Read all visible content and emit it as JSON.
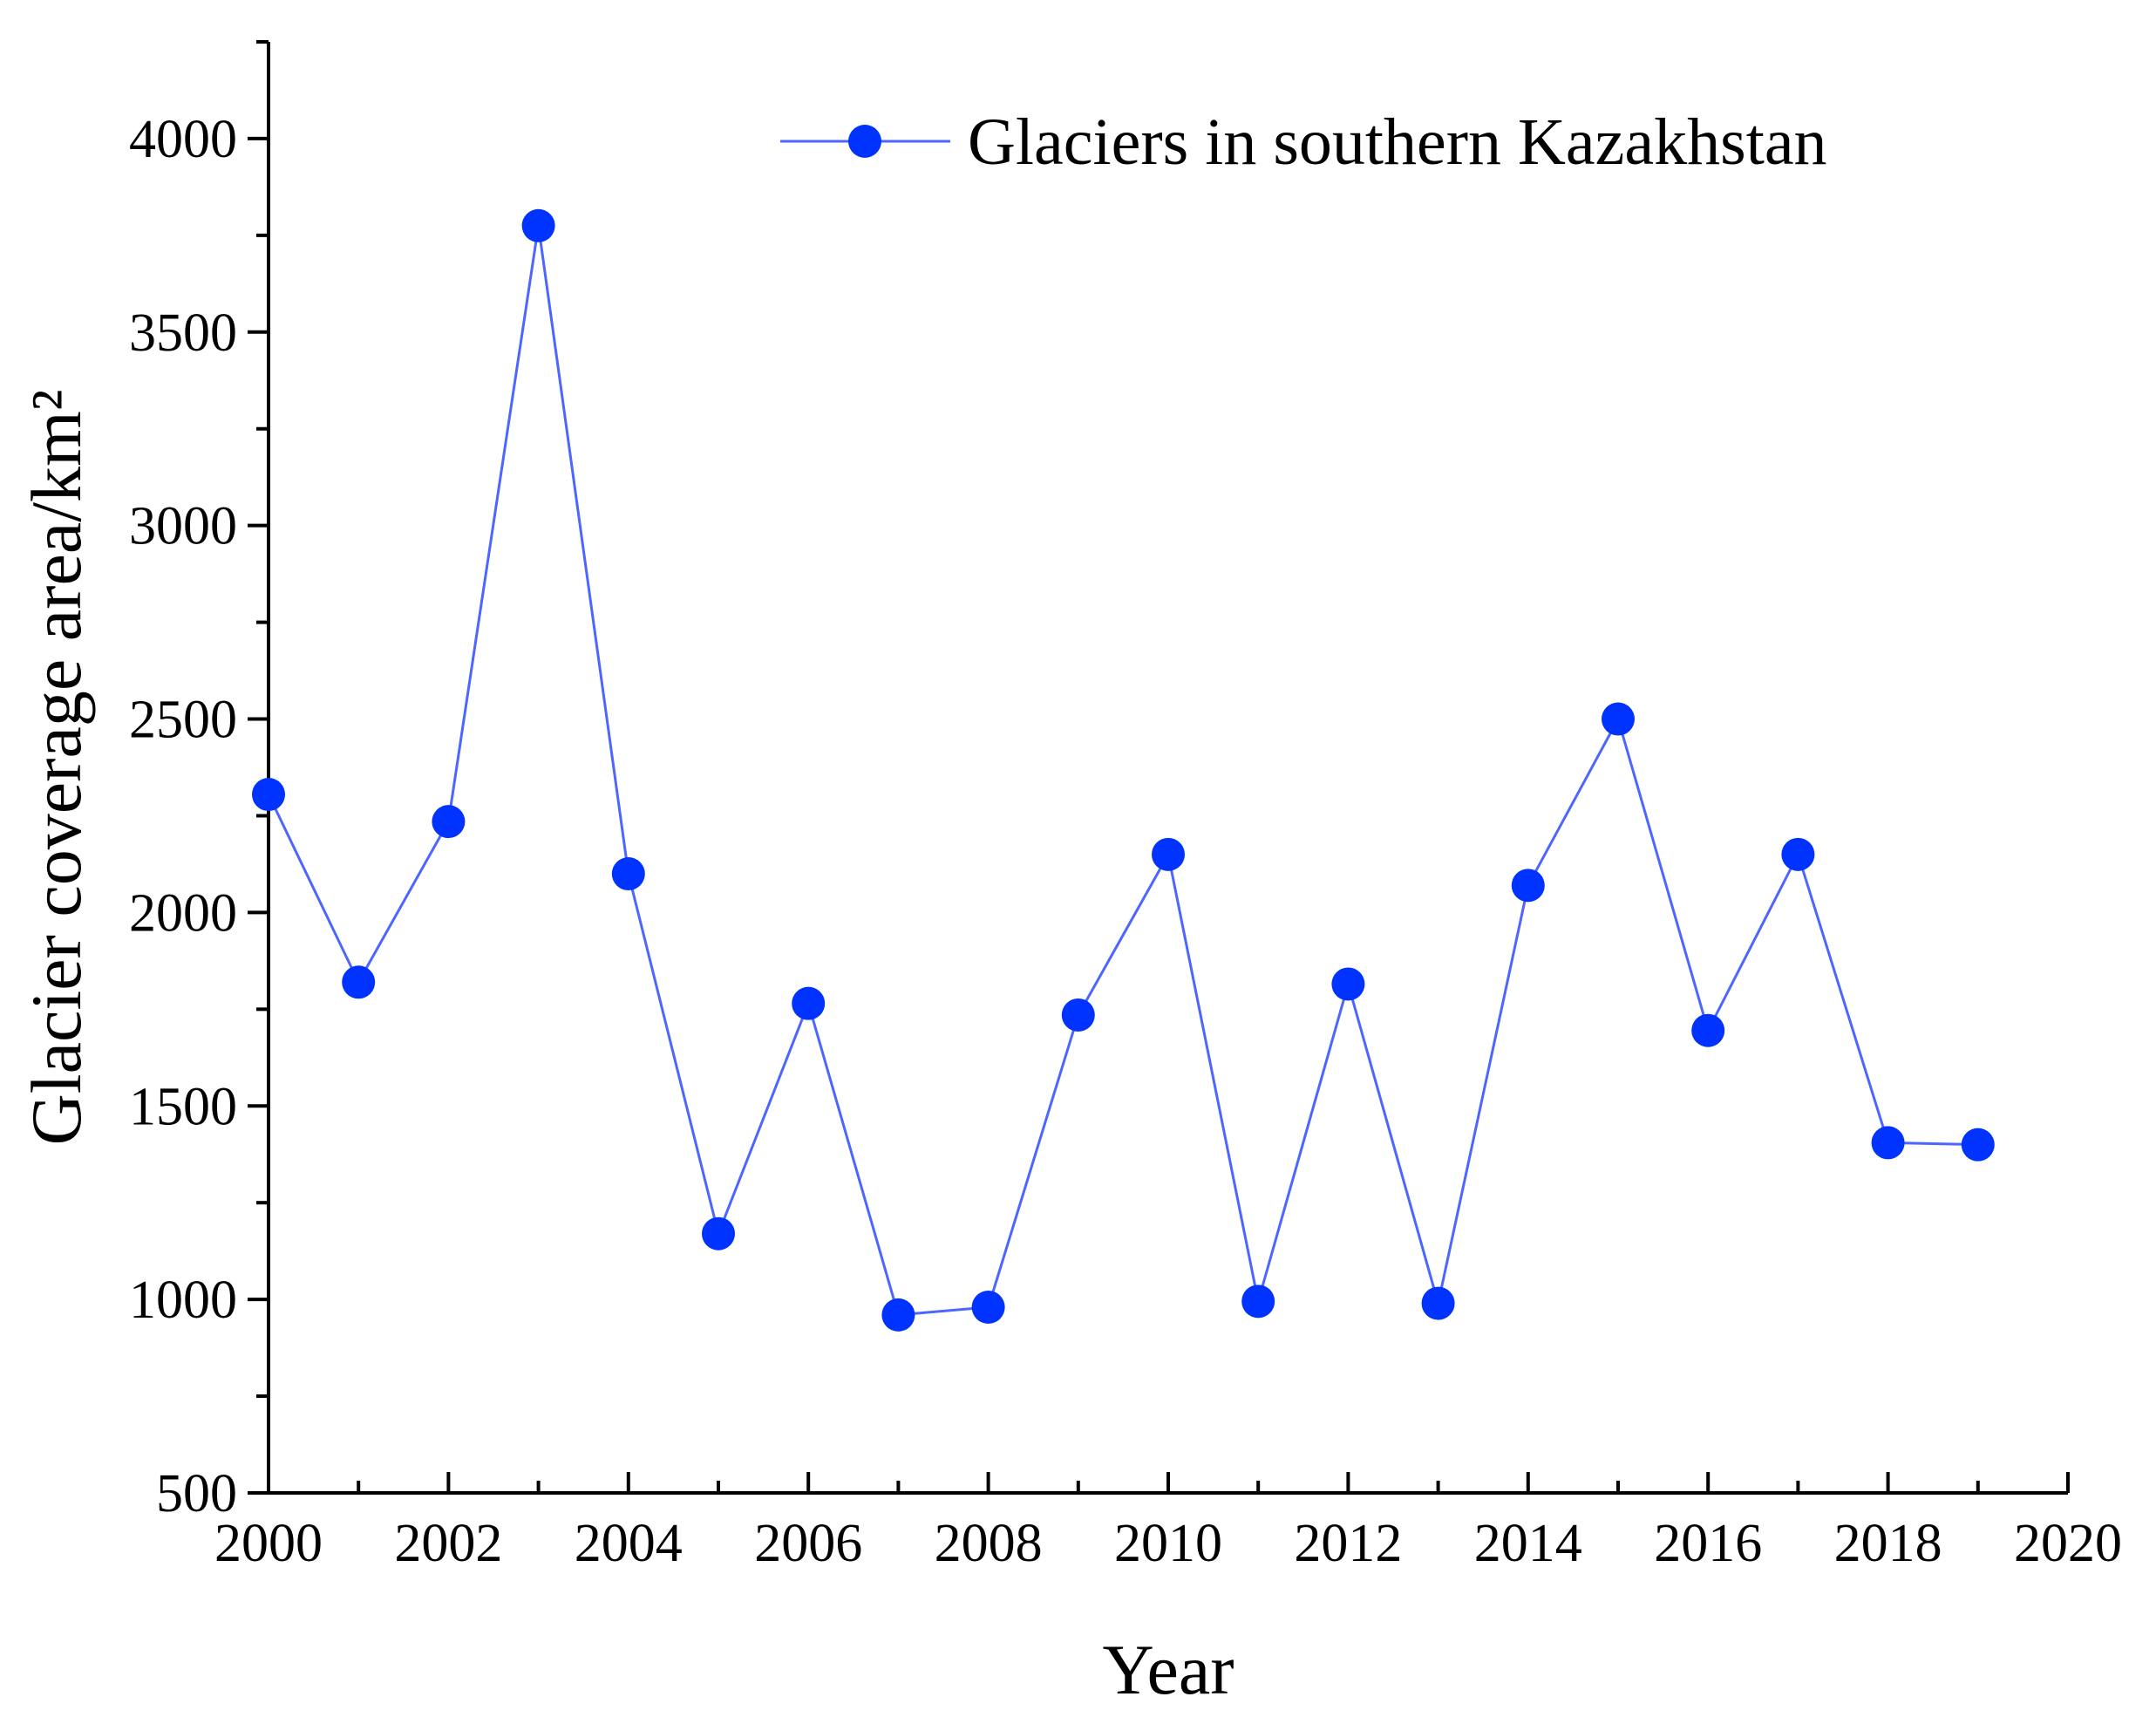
{
  "chart_data": {
    "type": "line",
    "title": "",
    "xlabel": "Year",
    "ylabel": "Glacier coverage area/km²",
    "xlim": [
      2000,
      2020
    ],
    "ylim": [
      500,
      4250
    ],
    "x_ticks": [
      2000,
      2002,
      2004,
      2006,
      2008,
      2010,
      2012,
      2014,
      2016,
      2018,
      2020
    ],
    "y_ticks": [
      500,
      1000,
      1500,
      2000,
      2500,
      3000,
      3500,
      4000
    ],
    "grid": false,
    "legend_position": "top-right",
    "series": [
      {
        "name": "Glaciers in southern Kazakhstan",
        "color": "#0033ff",
        "x": [
          2000,
          2001,
          2002,
          2003,
          2004,
          2005,
          2006,
          2007,
          2008,
          2009,
          2010,
          2011,
          2012,
          2013,
          2014,
          2015,
          2016,
          2017,
          2018,
          2019
        ],
        "values": [
          2305,
          1820,
          2235,
          3775,
          2100,
          1170,
          1765,
          960,
          980,
          1735,
          2150,
          995,
          1815,
          990,
          2070,
          2500,
          1695,
          2150,
          1405,
          1400
        ]
      }
    ]
  }
}
